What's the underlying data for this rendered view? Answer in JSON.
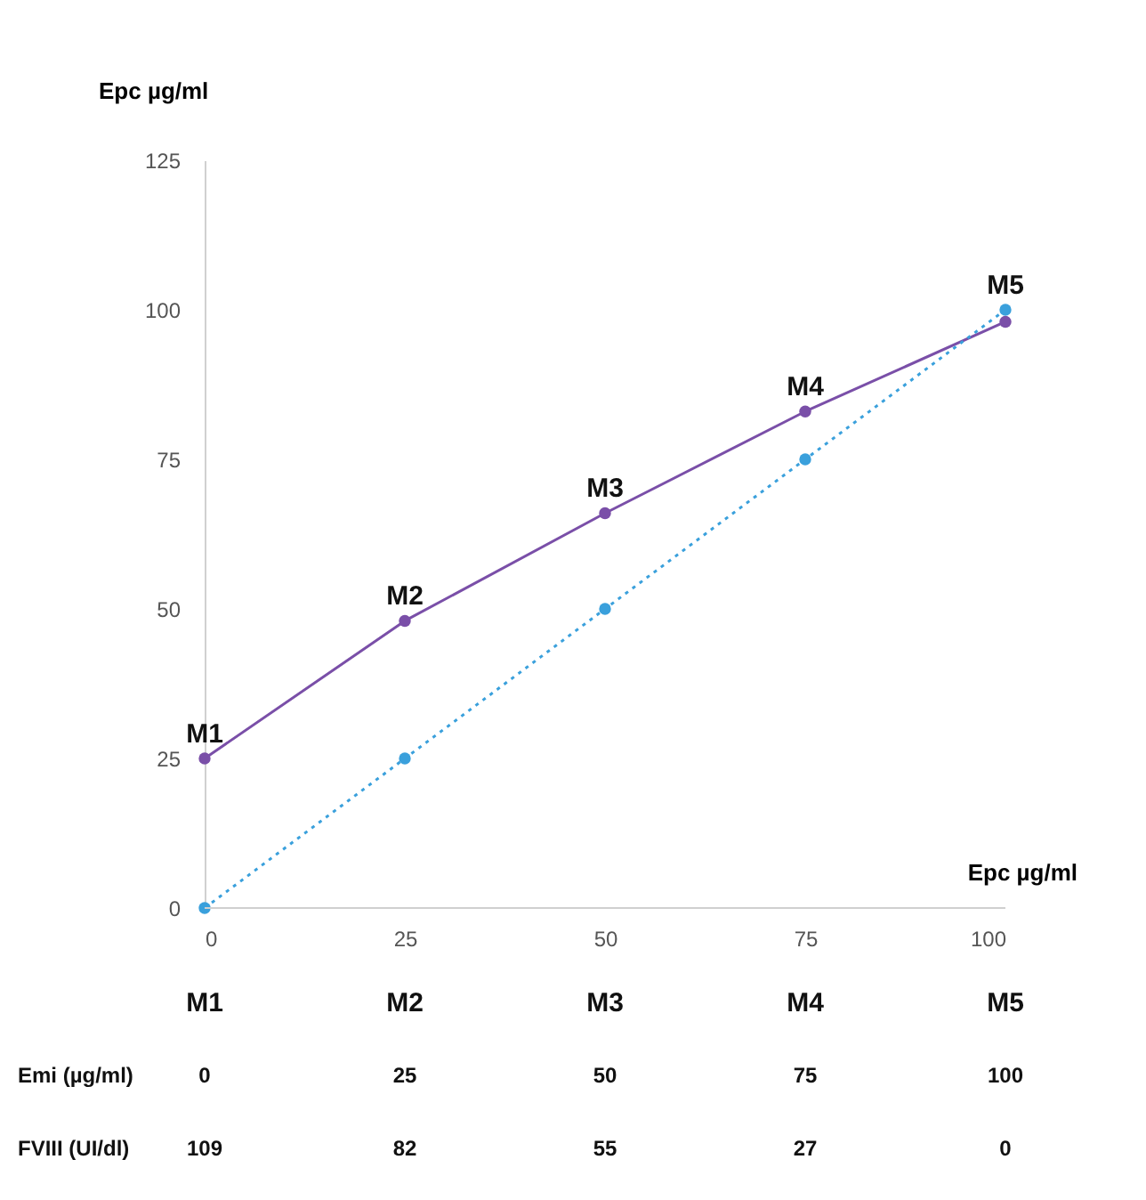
{
  "chart_data": {
    "type": "line",
    "xlabel": "Epc µg/ml",
    "ylabel": "Epc µg/ml",
    "x": [
      0,
      25,
      50,
      75,
      100
    ],
    "series": [
      {
        "color": "#7a4fa8",
        "values": [
          25,
          48,
          66,
          83,
          98
        ],
        "line_style": "solid",
        "marker": "circle"
      },
      {
        "color": "#3aa0dc",
        "values": [
          0,
          25,
          50,
          75,
          100
        ],
        "line_style": "dotted",
        "marker": "circle"
      }
    ],
    "xlim": [
      0,
      100
    ],
    "xticks": [
      0,
      25,
      50,
      75,
      100
    ],
    "ylim": [
      0,
      125
    ],
    "yticks": [
      0,
      25,
      50,
      75,
      100,
      125
    ],
    "grid": false,
    "annotations": [
      {
        "text": "M1",
        "x": 0,
        "y": 25
      },
      {
        "text": "M2",
        "x": 25,
        "y": 48
      },
      {
        "text": "M3",
        "x": 50,
        "y": 66
      },
      {
        "text": "M4",
        "x": 75,
        "y": 83
      },
      {
        "text": "M5",
        "x": 100,
        "y": 100
      },
      "M1",
      "M2",
      "M3",
      "M4",
      "M5",
      "Emi (µg/ml)",
      "0",
      "25",
      "50",
      "75",
      "100",
      "FVIII (UI/dl)",
      "109",
      "82",
      "55",
      "27",
      "0"
    ]
  }
}
